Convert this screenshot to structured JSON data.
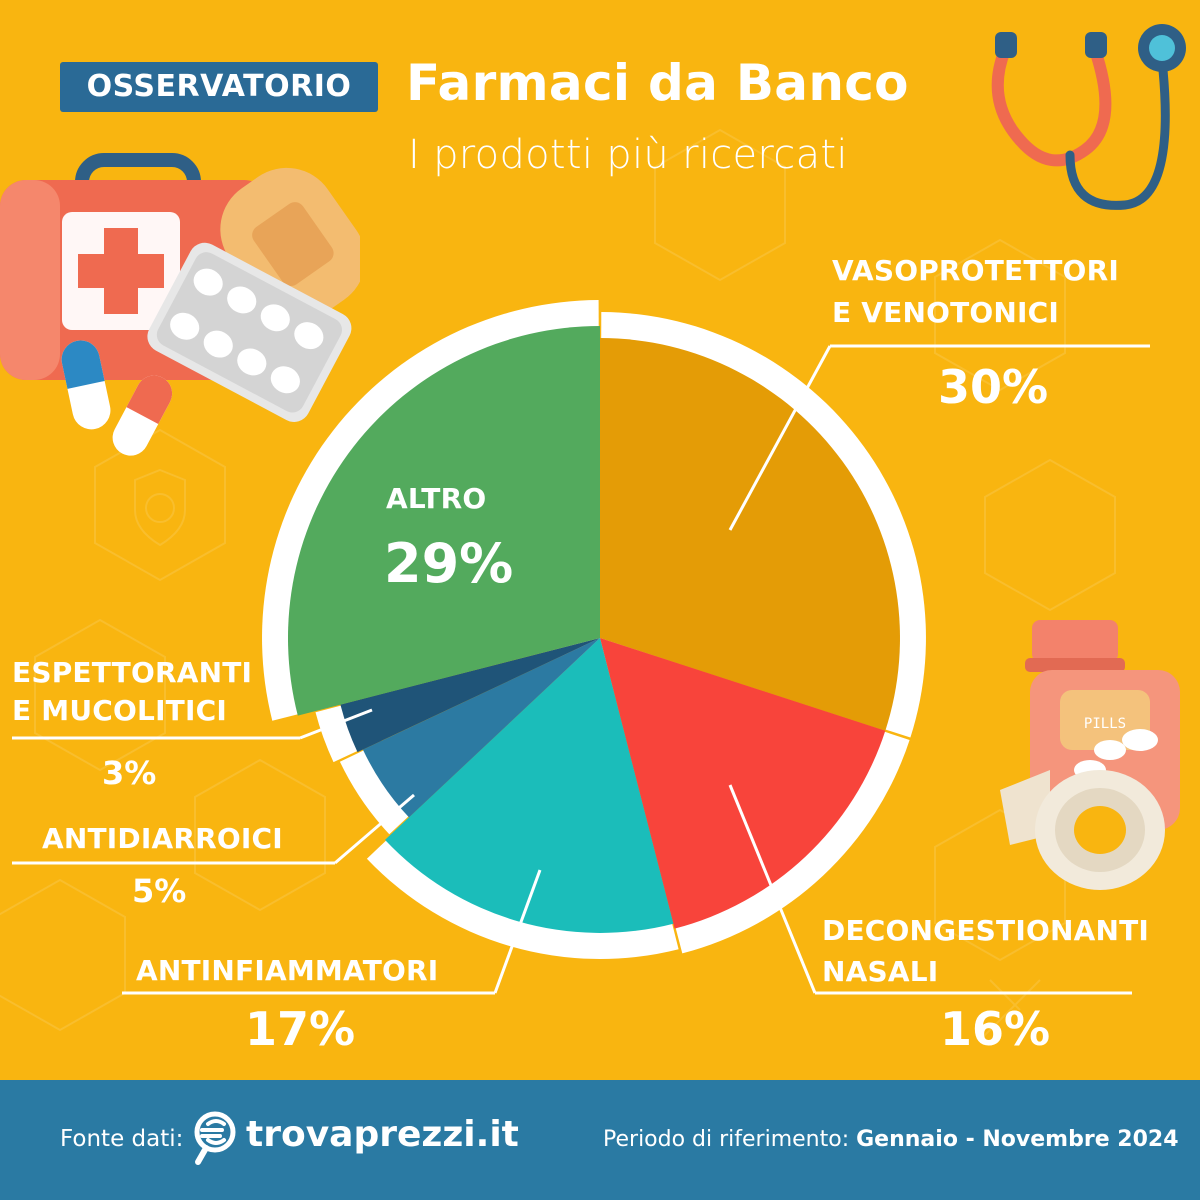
{
  "header": {
    "badge": "OSSERVATORIO",
    "title": "Farmaci da Banco",
    "subtitle": "I prodotti più ricercati"
  },
  "colors": {
    "background": "#f9b510",
    "vasoprotettori": "#e49c06",
    "decongestionanti": "#f8443b",
    "antinfiammatori": "#1bbdba",
    "antidiarroici": "#2c7aa2",
    "espettoranti": "#1f5478",
    "altro": "#53aa5d",
    "footer": "#2a7aa3",
    "badge": "#2a6a96"
  },
  "chart_data": {
    "type": "pie",
    "slices": [
      {
        "label": "VASOPROTETTORI E VENOTONICI",
        "value": 30,
        "value_label": "30%"
      },
      {
        "label": "DECONGESTIONANTI NASALI",
        "value": 16,
        "value_label": "16%"
      },
      {
        "label": "ANTINFIAMMATORI",
        "value": 17,
        "value_label": "17%"
      },
      {
        "label": "ANTIDIARROICI",
        "value": 5,
        "value_label": "5%"
      },
      {
        "label": "ESPETTORANTI E MUCOLITICI",
        "value": 3,
        "value_label": "3%"
      },
      {
        "label": "ALTRO",
        "value": 29,
        "value_label": "29%"
      }
    ]
  },
  "labels": {
    "vaso_line1": "VASOPROTETTORI",
    "vaso_line2": "E VENOTONICI",
    "vaso_pct": "30%",
    "decon_line1": "DECONGESTIONANTI",
    "decon_line2": "NASALI",
    "decon_pct": "16%",
    "antinf": "ANTINFIAMMATORI",
    "antinf_pct": "17%",
    "antid": "ANTIDIARROICI",
    "antid_pct": "5%",
    "espett_line1": "ESPETTORANTI",
    "espett_line2": "E MUCOLITICI",
    "espett_pct": "3%",
    "altro": "ALTRO",
    "altro_pct": "29%"
  },
  "footer": {
    "source_label": "Fonte dati:",
    "brand": "trovaprezzi.it",
    "period_label": "Periodo di riferimento:",
    "period_value": "Gennaio - Novembre 2024"
  },
  "decorations": {
    "pills_label": "PILLS"
  }
}
